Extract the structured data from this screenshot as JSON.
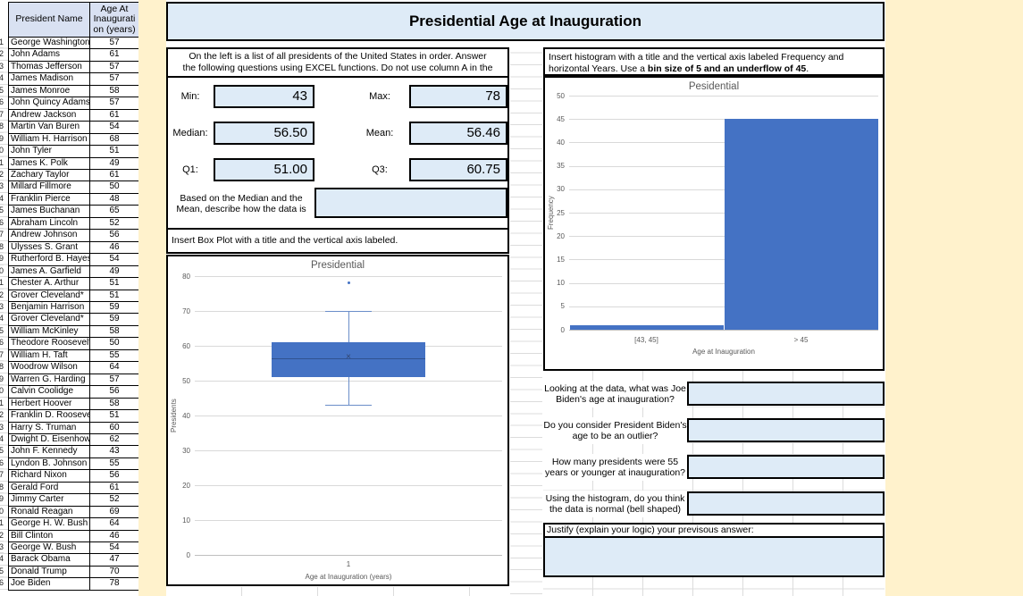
{
  "colors": {
    "accent": "#4472C4",
    "whisker": "#6B8EC9",
    "lightblue": "#DEEBF7",
    "header_fill": "#D9E1F2",
    "cream": "#FFF2CC",
    "chart_text": "#595959",
    "gridline": "#D9D9D9"
  },
  "header": {
    "title": "Presidential Age at Inauguration"
  },
  "table": {
    "headers": [
      "President Name",
      "Age At Inauguration (years)"
    ],
    "rows": [
      [
        "George Washington",
        57
      ],
      [
        "John Adams",
        61
      ],
      [
        "Thomas Jefferson",
        57
      ],
      [
        "James Madison",
        57
      ],
      [
        "James Monroe",
        58
      ],
      [
        "John Quincy Adams",
        57
      ],
      [
        "Andrew Jackson",
        61
      ],
      [
        "Martin Van Buren",
        54
      ],
      [
        "William H. Harrison",
        68
      ],
      [
        "John Tyler",
        51
      ],
      [
        "James K. Polk",
        49
      ],
      [
        "Zachary Taylor",
        61
      ],
      [
        "Millard Fillmore",
        50
      ],
      [
        "Franklin Pierce",
        48
      ],
      [
        "James Buchanan",
        65
      ],
      [
        "Abraham Lincoln",
        52
      ],
      [
        "Andrew Johnson",
        56
      ],
      [
        "Ulysses S. Grant",
        46
      ],
      [
        "Rutherford B. Hayes",
        54
      ],
      [
        "James A. Garfield",
        49
      ],
      [
        "Chester A. Arthur",
        51
      ],
      [
        "Grover Cleveland*",
        51
      ],
      [
        "Benjamin Harrison",
        59
      ],
      [
        "Grover Cleveland*",
        59
      ],
      [
        "William McKinley",
        58
      ],
      [
        "Theodore Roosevelt",
        50
      ],
      [
        "William H. Taft",
        55
      ],
      [
        "Woodrow Wilson",
        64
      ],
      [
        "Warren G. Harding",
        57
      ],
      [
        "Calvin Coolidge",
        56
      ],
      [
        "Herbert Hoover",
        58
      ],
      [
        "Franklin D. Roosevelt",
        51
      ],
      [
        "Harry S. Truman",
        60
      ],
      [
        "Dwight D. Eisenhower",
        62
      ],
      [
        "John F. Kennedy",
        43
      ],
      [
        "Lyndon B. Johnson",
        55
      ],
      [
        "Richard Nixon",
        56
      ],
      [
        "Gerald Ford",
        61
      ],
      [
        "Jimmy Carter",
        52
      ],
      [
        "Ronald Reagan",
        69
      ],
      [
        "George H. W. Bush",
        64
      ],
      [
        "Bill Clinton",
        46
      ],
      [
        "George W. Bush",
        54
      ],
      [
        "Barack Obama",
        47
      ],
      [
        "Donald Trump",
        70
      ],
      [
        "Joe Biden",
        78
      ]
    ]
  },
  "left_panel": {
    "instruction": "On the left is a list of all presidents of the United States in order.   Answer the following questions using EXCEL functions.  Do not use column A in the",
    "stats": [
      {
        "label": "Min:",
        "value": "43"
      },
      {
        "label": "Max:",
        "value": "78"
      },
      {
        "label": "Median:",
        "value": "56.50"
      },
      {
        "label": "Mean:",
        "value": "56.46"
      },
      {
        "label": "Q1:",
        "value": "51.00"
      },
      {
        "label": "Q3:",
        "value": "60.75"
      }
    ],
    "describe_prompt": "Based on the Median and the Mean, describe how the data is",
    "describe_answer": "",
    "boxplot_instruction": "Insert Box Plot with a title and the vertical axis labeled."
  },
  "right_panel": {
    "instruction": {
      "normal": "Insert histogram with a title and the vertical axis labeled Frequency and horizontal Years.  Use a ",
      "bold": "bin size of 5 and an underflow of 45",
      "suffix": "."
    },
    "questions": [
      {
        "label": "Looking at the data, what was Joe Biden's age at inauguration?",
        "answer": ""
      },
      {
        "label": "Do you consider President Biden's age to be an outlier?",
        "answer": ""
      },
      {
        "label": "How many presidents were 55 years or younger at inauguration?",
        "answer": ""
      },
      {
        "label": "Using the histogram, do you think the data is normal (bell shaped)",
        "answer": ""
      }
    ],
    "justify_label": "Justify (explain your logic) your previsous answer:",
    "justify_answer": ""
  },
  "chart_data": [
    {
      "type": "boxplot",
      "title": "Presidential",
      "xlabel": "Age at Inauguration (years)",
      "ylabel": "Presidents",
      "category": "1",
      "ylim": [
        0,
        80
      ],
      "ytick_step": 10,
      "stats": {
        "min": 43,
        "q1": 51,
        "median": 56.5,
        "mean": 56.46,
        "q3": 61,
        "whisker_high": 70,
        "outliers": [
          78
        ]
      },
      "grid": true,
      "legend": false
    },
    {
      "type": "bar",
      "title": "Pesidential",
      "xlabel": "Age at Inauguration",
      "ylabel": "Frequency",
      "categories": [
        "[43, 45]",
        "> 45"
      ],
      "values": [
        1,
        45
      ],
      "ylim": [
        0,
        50
      ],
      "ytick_step": 5,
      "grid": true,
      "legend": false
    }
  ]
}
